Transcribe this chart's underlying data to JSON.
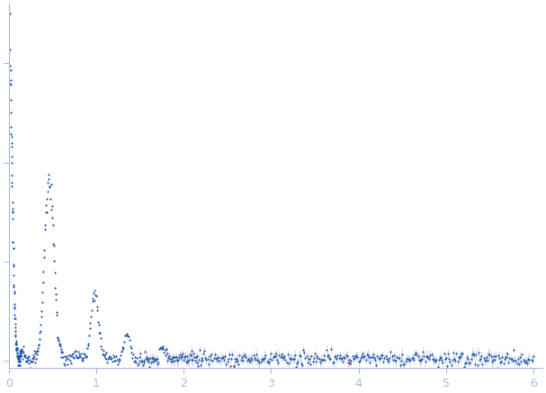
{
  "xlim": [
    0,
    6.1
  ],
  "ylim": [
    -0.015,
    0.72
  ],
  "x_ticks": [
    0,
    1,
    2,
    3,
    4,
    5,
    6
  ],
  "y_ticks": [
    0.0,
    0.2,
    0.4,
    0.6
  ],
  "background_color": "#ffffff",
  "dot_color": "#2255aa",
  "dot_color_red": "#cc2222",
  "error_color": "#99aacc",
  "dot_size": 2.5,
  "axis_color": "#aabbdd",
  "tick_color": "#aabbdd",
  "label_color": "#aabbdd",
  "figsize": [
    6.07,
    4.37
  ],
  "dpi": 100
}
